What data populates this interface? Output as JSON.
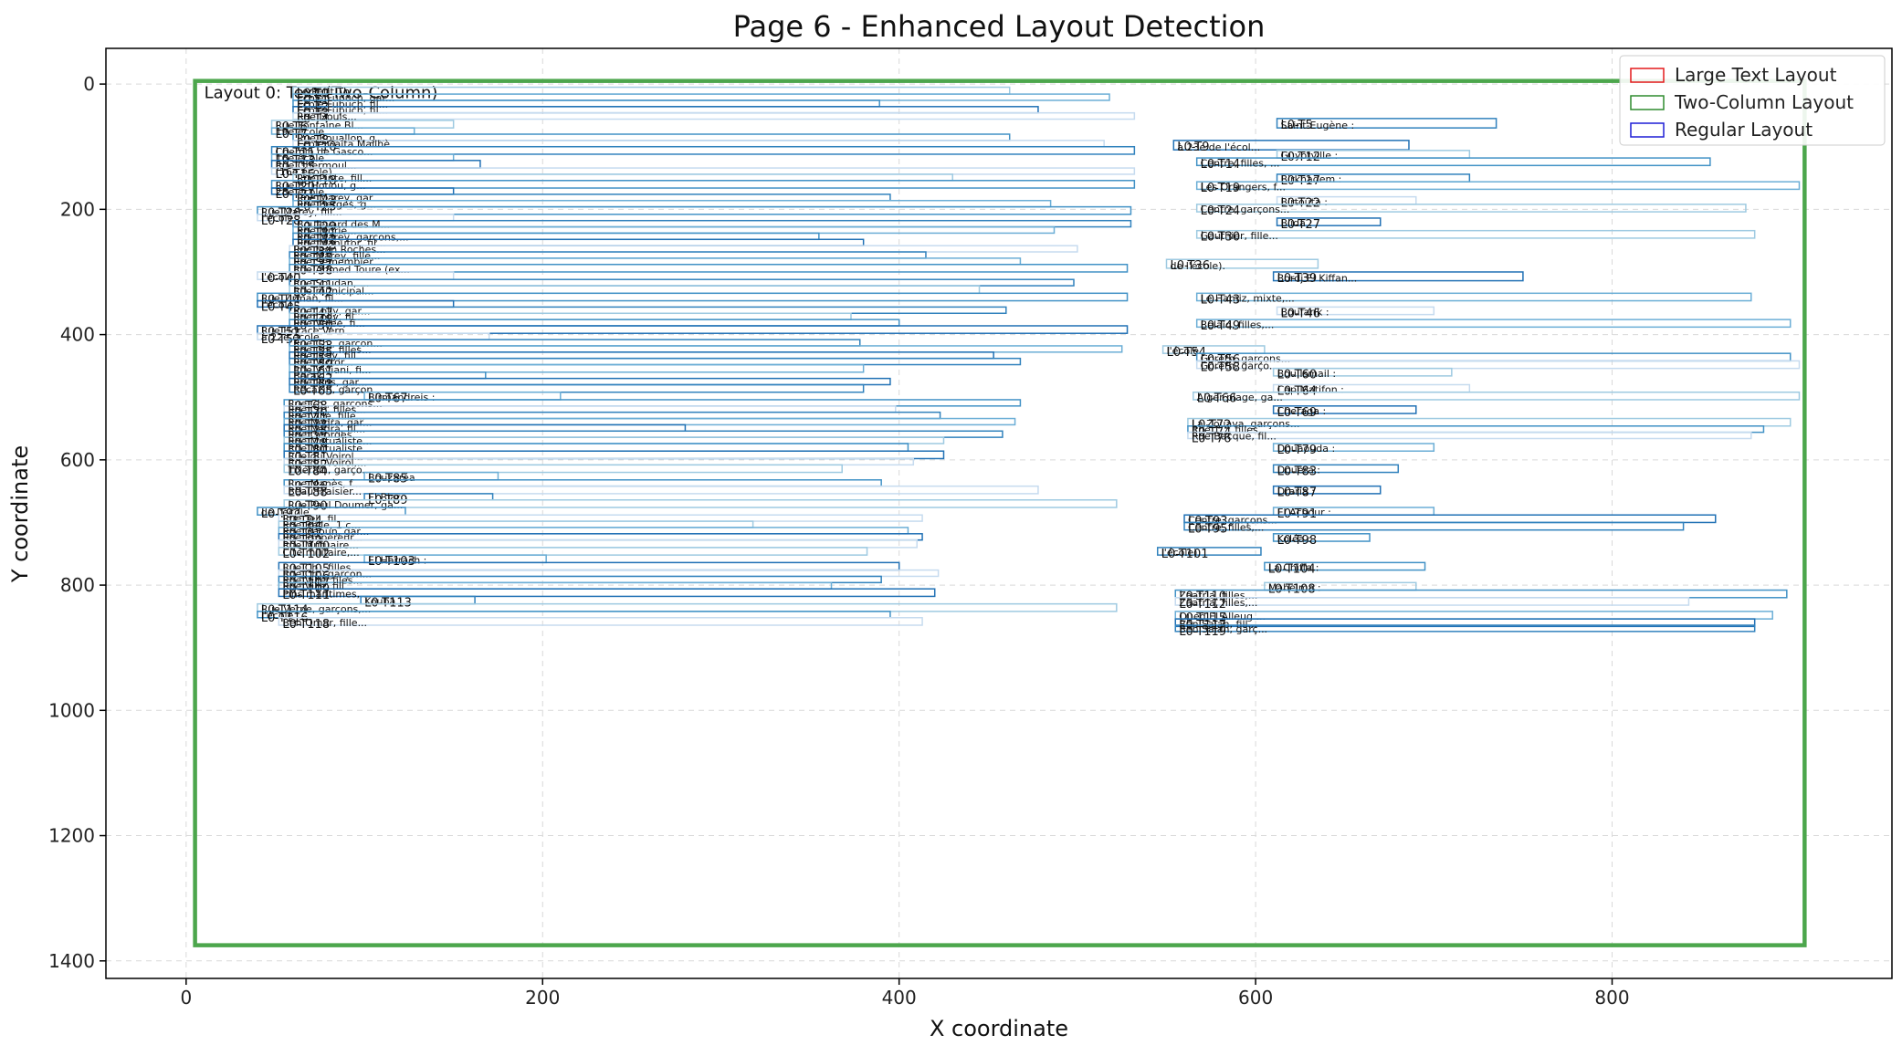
{
  "chart_data": {
    "type": "scatter",
    "title": "Page 6 - Enhanced Layout Detection",
    "xlabel": "X coordinate",
    "ylabel": "Y coordinate",
    "xlim": [
      -45,
      957
    ],
    "ylim": [
      1428,
      -57
    ],
    "y_inverted": true,
    "xticks": [
      0,
      200,
      400,
      600,
      800
    ],
    "yticks": [
      0,
      200,
      400,
      600,
      800,
      1000,
      1200,
      1400
    ],
    "grid": true,
    "legend_position": "top-right",
    "legend": [
      {
        "label": "Large Text Layout",
        "color": "#e41a1c"
      },
      {
        "label": "Two-Column Layout",
        "color": "#2e8b2e"
      },
      {
        "label": "Regular Layout",
        "color": "#1f1fd6"
      }
    ],
    "layout_region": {
      "label": "Layout 0: Text (Two-Column)",
      "x0": 5,
      "y0": -5,
      "x1": 908,
      "y1": 1375,
      "color": "#4ca64c"
    },
    "boxes": [
      {
        "id": "L0-T0",
        "x0": 60,
        "y0": 5,
        "x1": 462,
        "y1": 16,
        "text": "Le Petit Th..."
      },
      {
        "id": "L0-T1",
        "x0": 60,
        "y0": 16,
        "x1": 518,
        "y1": 26,
        "text": "Ecole Fupuch, gar..."
      },
      {
        "id": "L0-T2",
        "x0": 60,
        "y0": 26,
        "x1": 389,
        "y1": 36,
        "text": "Ecole Fupuch, fil..."
      },
      {
        "id": "L0-T3",
        "x0": 60,
        "y0": 36,
        "x1": 478,
        "y1": 46,
        "text": "Ecole Fupuch, fil..."
      },
      {
        "id": "L0-T4",
        "x0": 60,
        "y0": 46,
        "x1": 532,
        "y1": 56,
        "text": "Rue Douls..."
      },
      {
        "id": "L0-T5",
        "x0": 612,
        "y0": 55,
        "x1": 735,
        "y1": 70,
        "text": "Saint-Eugène :"
      },
      {
        "id": "L0-T6",
        "x0": 48,
        "y0": 58,
        "x1": 150,
        "y1": 70,
        "text": "Rue Fontaine Bl..."
      },
      {
        "id": "L0-T7",
        "x0": 48,
        "y0": 70,
        "x1": 128,
        "y1": 80,
        "text": "19e école"
      },
      {
        "id": "L0-T8",
        "x0": 60,
        "y0": 80,
        "x1": 462,
        "y1": 90,
        "text": "Rue Bouallon, g..."
      },
      {
        "id": "L0-T9",
        "x0": 554,
        "y0": 90,
        "x1": 686,
        "y1": 105,
        "text": "à 23e de l'écol..."
      },
      {
        "id": "L0-T10",
        "x0": 60,
        "y0": 90,
        "x1": 515,
        "y1": 100,
        "text": "Ecole Gaita Mailhè"
      },
      {
        "id": "L0-T11",
        "x0": 48,
        "y0": 100,
        "x1": 532,
        "y1": 112,
        "text": "Chemin de Gasco..."
      },
      {
        "id": "L0-T12",
        "x0": 612,
        "y0": 106,
        "x1": 720,
        "y1": 118,
        "text": "Guyotville :"
      },
      {
        "id": "L0-T13",
        "x0": 48,
        "y0": 112,
        "x1": 150,
        "y1": 122,
        "text": "16e école"
      },
      {
        "id": "L0-T14",
        "x0": 567,
        "y0": 118,
        "x1": 855,
        "y1": 130,
        "text": "Centre, filles, ..."
      },
      {
        "id": "L0-T15",
        "x0": 48,
        "y0": 122,
        "x1": 165,
        "y1": 134,
        "text": "Rue Ghermoul..."
      },
      {
        "id": "L0-T16",
        "x0": 48,
        "y0": 134,
        "x1": 532,
        "y1": 144,
        "text": "(16e école)"
      },
      {
        "id": "L0-T17",
        "x0": 612,
        "y0": 144,
        "x1": 720,
        "y1": 156,
        "text": "Birkhadem :"
      },
      {
        "id": "L0-T18",
        "x0": 60,
        "y0": 144,
        "x1": 430,
        "y1": 154,
        "text": "Rue Pinte, fill..."
      },
      {
        "id": "L0-T19",
        "x0": 567,
        "y0": 156,
        "x1": 905,
        "y1": 168,
        "text": "Les Orangers, f..."
      },
      {
        "id": "L0-T20",
        "x0": 48,
        "y0": 154,
        "x1": 532,
        "y1": 166,
        "text": "Rue B. Houou, g..."
      },
      {
        "id": "L0-T21",
        "x0": 48,
        "y0": 166,
        "x1": 150,
        "y1": 176,
        "text": "28e école"
      },
      {
        "id": "L0-T22",
        "x0": 612,
        "y0": 180,
        "x1": 690,
        "y1": 192,
        "text": "Birtouta :"
      },
      {
        "id": "L0-T23",
        "x0": 60,
        "y0": 176,
        "x1": 395,
        "y1": 186,
        "text": "Rue Marey, gar..."
      },
      {
        "id": "L0-T24",
        "x0": 567,
        "y0": 192,
        "x1": 875,
        "y1": 204,
        "text": "Centre, garçons..."
      },
      {
        "id": "L0-T25",
        "x0": 60,
        "y0": 186,
        "x1": 485,
        "y1": 196,
        "text": "Rue Berges, g..."
      },
      {
        "id": "L0-T26",
        "x0": 40,
        "y0": 196,
        "x1": 530,
        "y1": 208,
        "text": "Rue Marey, fill..."
      },
      {
        "id": "L0-T27",
        "x0": 612,
        "y0": 214,
        "x1": 670,
        "y1": 226,
        "text": "Blida :"
      },
      {
        "id": "L0-T28",
        "x0": 40,
        "y0": 208,
        "x1": 150,
        "y1": 218,
        "text": "l'école"
      },
      {
        "id": "L0-T29",
        "x0": 60,
        "y0": 218,
        "x1": 530,
        "y1": 228,
        "text": "Boulevard des M..."
      },
      {
        "id": "L0-T30",
        "x0": 567,
        "y0": 234,
        "x1": 880,
        "y1": 246,
        "text": "Gauthier, fille..."
      },
      {
        "id": "L0-T31",
        "x0": 60,
        "y0": 228,
        "x1": 487,
        "y1": 238,
        "text": "Rue Murie..."
      },
      {
        "id": "L0-T32",
        "x0": 60,
        "y0": 238,
        "x1": 355,
        "y1": 248,
        "text": "Rue Marey, garçons,..."
      },
      {
        "id": "L0-T33",
        "x0": 60,
        "y0": 248,
        "x1": 380,
        "y1": 258,
        "text": "Rue Manutor, fil..."
      },
      {
        "id": "L0-T34",
        "x0": 58,
        "y0": 258,
        "x1": 500,
        "y1": 268,
        "text": "Rue Jean Roches..."
      },
      {
        "id": "L0-T35",
        "x0": 58,
        "y0": 268,
        "x1": 415,
        "y1": 278,
        "text": "Rue Marey, fille..."
      },
      {
        "id": "L0-T36",
        "x0": 550,
        "y0": 280,
        "x1": 635,
        "y1": 294,
        "text": "de l'école)."
      },
      {
        "id": "L0-T37",
        "x0": 58,
        "y0": 278,
        "x1": 468,
        "y1": 288,
        "text": "Rue Semembier..."
      },
      {
        "id": "L0-T38",
        "x0": 58,
        "y0": 288,
        "x1": 528,
        "y1": 300,
        "text": "Rue Ahmed Toure (ex..."
      },
      {
        "id": "L0-T39",
        "x0": 610,
        "y0": 300,
        "x1": 750,
        "y1": 314,
        "text": "Bordj El Kiffan..."
      },
      {
        "id": "L0-T40",
        "x0": 40,
        "y0": 300,
        "x1": 150,
        "y1": 312,
        "text": "l'école"
      },
      {
        "id": "L0-T41",
        "x0": 58,
        "y0": 312,
        "x1": 498,
        "y1": 322,
        "text": "Rue Soudan, ..."
      },
      {
        "id": "L0-T42",
        "x0": 58,
        "y0": 322,
        "x1": 445,
        "y1": 334,
        "text": "Rue municipal..."
      },
      {
        "id": "L0-T43",
        "x0": 567,
        "y0": 334,
        "x1": 878,
        "y1": 346,
        "text": "Le Hamiz, mixte,..."
      },
      {
        "id": "L0-T44",
        "x0": 40,
        "y0": 334,
        "x1": 528,
        "y1": 346,
        "text": "Rue Tirman, fil..."
      },
      {
        "id": "L0-T45",
        "x0": 40,
        "y0": 346,
        "x1": 150,
        "y1": 356,
        "text": "l'école"
      },
      {
        "id": "L0-T46",
        "x0": 612,
        "y0": 356,
        "x1": 700,
        "y1": 368,
        "text": "Boufarik :"
      },
      {
        "id": "L0-T47",
        "x0": 58,
        "y0": 356,
        "x1": 460,
        "y1": 366,
        "text": "Rue Loily, gar..."
      },
      {
        "id": "L0-T48",
        "x0": 58,
        "y0": 366,
        "x1": 373,
        "y1": 376,
        "text": "Rue Loily, fil..."
      },
      {
        "id": "L0-T49",
        "x0": 567,
        "y0": 376,
        "x1": 900,
        "y1": 388,
        "text": "Belaid, filles,..."
      },
      {
        "id": "L0-T50",
        "x0": 58,
        "y0": 376,
        "x1": 400,
        "y1": 386,
        "text": "Rue Valée, fi..."
      },
      {
        "id": "L0-T51",
        "x0": 40,
        "y0": 386,
        "x1": 528,
        "y1": 398,
        "text": "Rue Horace Vern..."
      },
      {
        "id": "L0-T52",
        "x0": 40,
        "y0": 398,
        "x1": 170,
        "y1": 408,
        "text": "à 22e école"
      },
      {
        "id": "L0-T53",
        "x0": 58,
        "y0": 408,
        "x1": 378,
        "y1": 418,
        "text": "Rue Ch., garçon..."
      },
      {
        "id": "L0-T54",
        "x0": 548,
        "y0": 418,
        "x1": 605,
        "y1": 430,
        "text": "l'école"
      },
      {
        "id": "L0-T55",
        "x0": 58,
        "y0": 418,
        "x1": 525,
        "y1": 428,
        "text": "Rue Ch., filles..."
      },
      {
        "id": "L0-T56",
        "x0": 567,
        "y0": 430,
        "x1": 900,
        "y1": 442,
        "text": "Goreth, garçons..."
      },
      {
        "id": "L0-T57",
        "x0": 58,
        "y0": 428,
        "x1": 453,
        "y1": 438,
        "text": "Rue Lisly, fill..."
      },
      {
        "id": "L0-T58",
        "x0": 567,
        "y0": 442,
        "x1": 905,
        "y1": 454,
        "text": "Goreth, garço..."
      },
      {
        "id": "L0-T59",
        "x0": 58,
        "y0": 438,
        "x1": 468,
        "y1": 448,
        "text": "Rue Victor..."
      },
      {
        "id": "L0-T60",
        "x0": 610,
        "y0": 454,
        "x1": 710,
        "y1": 466,
        "text": "Bou Ismail :"
      },
      {
        "id": "L0-T61",
        "x0": 58,
        "y0": 448,
        "x1": 380,
        "y1": 460,
        "text": "Rue Viviani, fi..."
      },
      {
        "id": "L0-T62",
        "x0": 58,
        "y0": 460,
        "x1": 168,
        "y1": 470,
        "text": "Baraki :"
      },
      {
        "id": "L0-T63",
        "x0": 58,
        "y0": 470,
        "x1": 395,
        "y1": 480,
        "text": "Rue Plus, gar..."
      },
      {
        "id": "L0-T64",
        "x0": 610,
        "y0": 480,
        "x1": 720,
        "y1": 492,
        "text": "Cap Matifon :"
      },
      {
        "id": "L0-T65",
        "x0": 58,
        "y0": 480,
        "x1": 380,
        "y1": 492,
        "text": "Recazin, garçon..."
      },
      {
        "id": "L0-T66",
        "x0": 565,
        "y0": 492,
        "x1": 905,
        "y1": 504,
        "text": "Alger plage, ga..."
      },
      {
        "id": "L0-T67",
        "x0": 100,
        "y0": 492,
        "x1": 210,
        "y1": 504,
        "text": "Birmandreis :"
      },
      {
        "id": "L0-T68",
        "x0": 55,
        "y0": 504,
        "x1": 468,
        "y1": 514,
        "text": "Rue Ch., garçons..."
      },
      {
        "id": "L0-T69",
        "x0": 610,
        "y0": 514,
        "x1": 690,
        "y1": 526,
        "text": "Cheraga :"
      },
      {
        "id": "L0-T70",
        "x0": 55,
        "y0": 514,
        "x1": 398,
        "y1": 524,
        "text": "Rue Ch., filles..."
      },
      {
        "id": "L0-T71",
        "x0": 55,
        "y0": 524,
        "x1": 423,
        "y1": 534,
        "text": "Rue Ville, fille..."
      },
      {
        "id": "L0-T72",
        "x0": 562,
        "y0": 534,
        "x1": 900,
        "y1": 546,
        "text": "La Zouava, garçons..."
      },
      {
        "id": "L0-T73",
        "x0": 55,
        "y0": 534,
        "x1": 465,
        "y1": 544,
        "text": "Rue Nedra, gar..."
      },
      {
        "id": "L0-T74",
        "x0": 562,
        "y0": 546,
        "x1": 885,
        "y1": 556,
        "text": "Rue T..., filles..."
      },
      {
        "id": "L0-T75",
        "x0": 55,
        "y0": 544,
        "x1": 280,
        "y1": 554,
        "text": "Rue Nedra, fil..."
      },
      {
        "id": "L0-T76",
        "x0": 562,
        "y0": 556,
        "x1": 878,
        "y1": 566,
        "text": "Rue Bacque, fil..."
      },
      {
        "id": "L0-T77",
        "x0": 55,
        "y0": 554,
        "x1": 458,
        "y1": 564,
        "text": "Rue Georges..."
      },
      {
        "id": "L0-T78",
        "x0": 55,
        "y0": 564,
        "x1": 425,
        "y1": 574,
        "text": "Rue Mutualiste..."
      },
      {
        "id": "L0-T79",
        "x0": 610,
        "y0": 574,
        "x1": 700,
        "y1": 586,
        "text": "Douaouda :"
      },
      {
        "id": "L0-T80",
        "x0": 55,
        "y0": 574,
        "x1": 405,
        "y1": 586,
        "text": "Rue Mutualiste..."
      },
      {
        "id": "L0-T81",
        "x0": 55,
        "y0": 586,
        "x1": 425,
        "y1": 598,
        "text": "Rue du Voirol..."
      },
      {
        "id": "L0-T82",
        "x0": 55,
        "y0": 598,
        "x1": 408,
        "y1": 608,
        "text": "Rue du Voirol,..."
      },
      {
        "id": "L0-T83",
        "x0": 610,
        "y0": 608,
        "x1": 680,
        "y1": 620,
        "text": "Douera :"
      },
      {
        "id": "L0-T84",
        "x0": 55,
        "y0": 608,
        "x1": 368,
        "y1": 620,
        "text": "Tixeraïn, garço..."
      },
      {
        "id": "L0-T85",
        "x0": 100,
        "y0": 620,
        "x1": 175,
        "y1": 632,
        "text": "Bouzaréa"
      },
      {
        "id": "L0-T86",
        "x0": 55,
        "y0": 632,
        "x1": 390,
        "y1": 642,
        "text": "Rue Manès, f..."
      },
      {
        "id": "L0-T87",
        "x0": 610,
        "y0": 642,
        "x1": 670,
        "y1": 654,
        "text": "Draria :"
      },
      {
        "id": "L0-T88",
        "x0": 55,
        "y0": 642,
        "x1": 478,
        "y1": 654,
        "text": "Beau Fraisier..."
      },
      {
        "id": "L0-T89",
        "x0": 100,
        "y0": 654,
        "x1": 172,
        "y1": 664,
        "text": "El Biar :"
      },
      {
        "id": "L0-T90",
        "x0": 55,
        "y0": 664,
        "x1": 522,
        "y1": 676,
        "text": "Rue Paul Doumer, ga..."
      },
      {
        "id": "L0-T91",
        "x0": 610,
        "y0": 676,
        "x1": 700,
        "y1": 688,
        "text": "El Achour :"
      },
      {
        "id": "L0-T92",
        "x0": 40,
        "y0": 676,
        "x1": 123,
        "y1": 688,
        "text": "de l'école"
      },
      {
        "id": "L0-T93",
        "x0": 560,
        "y0": 688,
        "x1": 858,
        "y1": 700,
        "text": "Centre, garçons..."
      },
      {
        "id": "L0-T94",
        "x0": 52,
        "y0": 688,
        "x1": 413,
        "y1": 698,
        "text": "Rue Tell, fil..."
      },
      {
        "id": "L0-T95",
        "x0": 560,
        "y0": 700,
        "x1": 840,
        "y1": 712,
        "text": "Centre, filles,..."
      },
      {
        "id": "L0-T96",
        "x0": 52,
        "y0": 698,
        "x1": 318,
        "y1": 708,
        "text": "Rue Belle, 1 c..."
      },
      {
        "id": "L0-T97",
        "x0": 52,
        "y0": 708,
        "x1": 405,
        "y1": 718,
        "text": "Rue Gaoun, gar..."
      },
      {
        "id": "L0-T98",
        "x0": 610,
        "y0": 718,
        "x1": 664,
        "y1": 730,
        "text": "Koléa :"
      },
      {
        "id": "L0-T99",
        "x0": 52,
        "y0": 718,
        "x1": 413,
        "y1": 728,
        "text": "Rue Empereur..."
      },
      {
        "id": "L0-T100",
        "x0": 52,
        "y0": 728,
        "x1": 410,
        "y1": 740,
        "text": "Rue Mutuaire..."
      },
      {
        "id": "L0-T101",
        "x0": 545,
        "y0": 740,
        "x1": 603,
        "y1": 752,
        "text": "l'école)."
      },
      {
        "id": "L0-T102",
        "x0": 52,
        "y0": 740,
        "x1": 382,
        "y1": 752,
        "text": "Cité militaire,..."
      },
      {
        "id": "L0-T103",
        "x0": 100,
        "y0": 752,
        "x1": 202,
        "y1": 764,
        "text": "El Harrach :"
      },
      {
        "id": "L0-T104",
        "x0": 605,
        "y0": 764,
        "x1": 695,
        "y1": 776,
        "text": "La Chiffa :"
      },
      {
        "id": "L0-T105",
        "x0": 52,
        "y0": 764,
        "x1": 400,
        "y1": 776,
        "text": "Rue Ch., filles..."
      },
      {
        "id": "L0-T106",
        "x0": 52,
        "y0": 776,
        "x1": 422,
        "y1": 786,
        "text": "Rue Ch., garçon..."
      },
      {
        "id": "L0-T107",
        "x0": 52,
        "y0": 786,
        "x1": 390,
        "y1": 796,
        "text": "Rue Ville, files..."
      },
      {
        "id": "L0-T108",
        "x0": 605,
        "y0": 796,
        "x1": 690,
        "y1": 808,
        "text": "Mahelma :"
      },
      {
        "id": "L0-T109",
        "x0": 52,
        "y0": 796,
        "x1": 362,
        "y1": 806,
        "text": "Rue Ville, fill..."
      },
      {
        "id": "L0-T110",
        "x0": 555,
        "y0": 808,
        "x1": 898,
        "y1": 820,
        "text": "Zaatria, filles,..."
      },
      {
        "id": "L0-T111",
        "x0": 52,
        "y0": 806,
        "x1": 420,
        "y1": 818,
        "text": "Pins maritimes,..."
      },
      {
        "id": "L0-T112",
        "x0": 555,
        "y0": 820,
        "x1": 843,
        "y1": 832,
        "text": "Zaatria, filles,..."
      },
      {
        "id": "L0-T113",
        "x0": 98,
        "y0": 818,
        "x1": 162,
        "y1": 830,
        "text": "Kouba :"
      },
      {
        "id": "L0-T114",
        "x0": 40,
        "y0": 830,
        "x1": 522,
        "y1": 842,
        "text": "Rue Verne, garçons,..."
      },
      {
        "id": "L0-T115",
        "x0": 555,
        "y0": 842,
        "x1": 890,
        "y1": 854,
        "text": "Oued El Alleug ..."
      },
      {
        "id": "L0-T116",
        "x0": 40,
        "y0": 842,
        "x1": 395,
        "y1": 852,
        "text": "l'école"
      },
      {
        "id": "L0-T117",
        "x0": 555,
        "y0": 854,
        "x1": 880,
        "y1": 866,
        "text": "Ben Salah, fill..."
      },
      {
        "id": "L0-T118",
        "x0": 52,
        "y0": 852,
        "x1": 413,
        "y1": 864,
        "text": "Ben Omar, fille..."
      },
      {
        "id": "L0-T119",
        "x0": 555,
        "y0": 864,
        "x1": 880,
        "y1": 874,
        "text": "Ben Salah, garç..."
      }
    ]
  }
}
